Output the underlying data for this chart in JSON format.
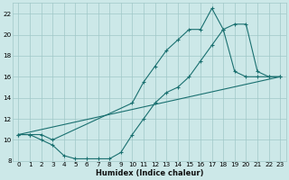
{
  "xlabel": "Humidex (Indice chaleur)",
  "ylabel": "",
  "bg_color": "#cce8e8",
  "grid_color": "#a0c8c8",
  "line_color": "#1a7070",
  "xlim": [
    -0.5,
    23.5
  ],
  "ylim": [
    8,
    23
  ],
  "xticks": [
    0,
    1,
    2,
    3,
    4,
    5,
    6,
    7,
    8,
    9,
    10,
    11,
    12,
    13,
    14,
    15,
    16,
    17,
    18,
    19,
    20,
    21,
    22,
    23
  ],
  "yticks": [
    8,
    10,
    12,
    14,
    16,
    18,
    20,
    22
  ],
  "line1_x": [
    0,
    1,
    2,
    3,
    4,
    5,
    6,
    7,
    8,
    9,
    10,
    11,
    12,
    13,
    14,
    15,
    16,
    17,
    18,
    19,
    20,
    21,
    22,
    23
  ],
  "line1_y": [
    10.5,
    10.5,
    10.0,
    9.5,
    8.5,
    8.2,
    8.2,
    8.2,
    8.2,
    8.8,
    10.5,
    12.0,
    13.5,
    14.5,
    15.0,
    16.0,
    17.5,
    19.0,
    20.5,
    16.5,
    16.0,
    16.0,
    16.0,
    16.0
  ],
  "line2_x": [
    0,
    1,
    2,
    3,
    10,
    11,
    12,
    13,
    14,
    15,
    16,
    17,
    18,
    19,
    20,
    21,
    22,
    23
  ],
  "line2_y": [
    10.5,
    10.5,
    10.5,
    10.0,
    13.5,
    15.5,
    17.0,
    18.5,
    19.5,
    20.5,
    20.5,
    22.5,
    20.5,
    21.0,
    21.0,
    16.5,
    16.0,
    16.0
  ],
  "line3_x": [
    0,
    23
  ],
  "line3_y": [
    10.5,
    16.0
  ]
}
